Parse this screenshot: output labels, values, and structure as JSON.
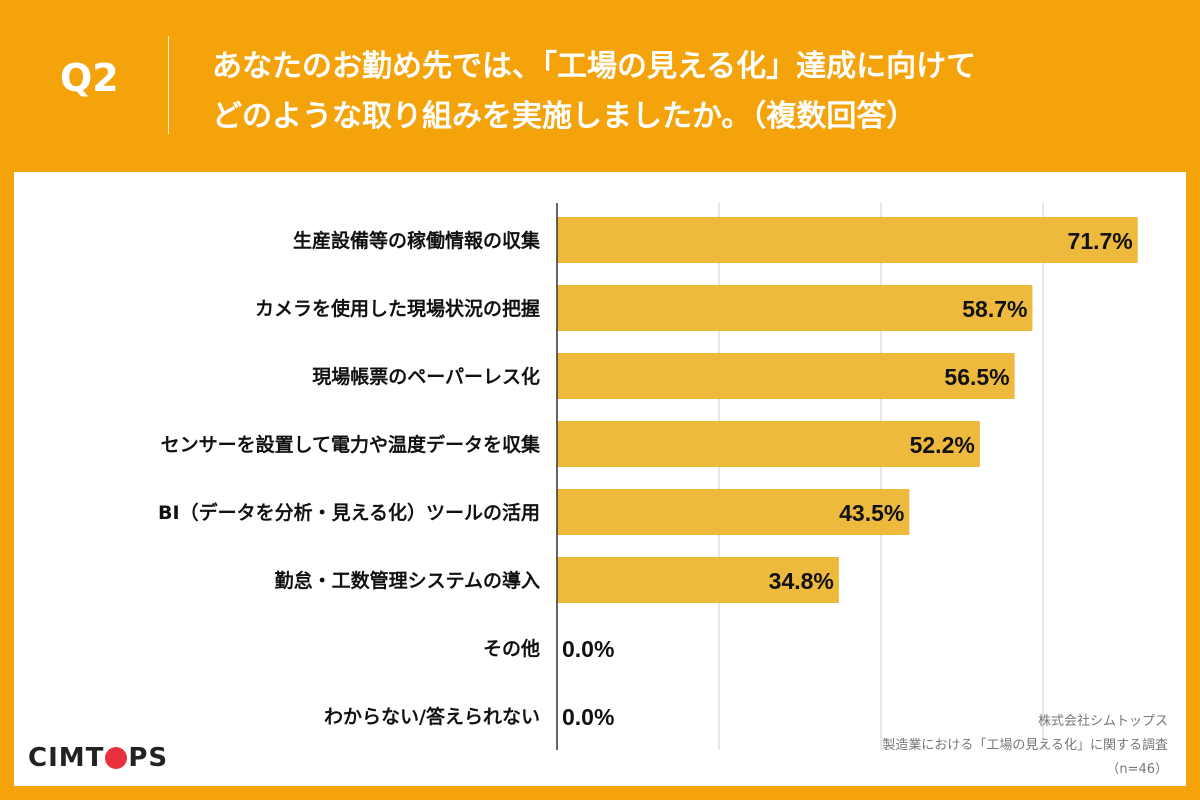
{
  "header": {
    "q_label": "Q2",
    "question_line1": "あなたのお勤め先では、「工場の見える化」達成に向けて",
    "question_line2": "どのような取り組みを実施しましたか。（複数回答）"
  },
  "logo": {
    "text_before": "CIMT",
    "text_after": "PS"
  },
  "source": {
    "company": "株式会社シムトップス",
    "survey": "製造業における「工場の見える化」に関する調査",
    "n": "（n=46）"
  },
  "colors": {
    "background": "#F5A30B",
    "bar": "#EDBA3E",
    "text": "#111111",
    "grid": "#cccccc"
  },
  "chart_data": {
    "type": "bar",
    "orientation": "horizontal",
    "categories": [
      "生産設備等の稼働情報の収集",
      "カメラを使用した現場状況の把握",
      "現場帳票のペーパーレス化",
      "センサーを設置して電力や温度データを収集",
      "BI（データを分析・見える化）ツールの活用",
      "勤怠・工数管理システムの導入",
      "その他",
      "わからない/答えられない"
    ],
    "values": [
      71.7,
      58.7,
      56.5,
      52.2,
      43.5,
      34.8,
      0.0,
      0.0
    ],
    "value_labels": [
      "71.7%",
      "58.7%",
      "56.5%",
      "52.2%",
      "43.5%",
      "34.8%",
      "0.0%",
      "0.0%"
    ],
    "xlim": [
      0,
      80
    ],
    "gridlines": [
      20,
      40,
      60,
      80
    ],
    "grid": true,
    "title": "",
    "xlabel": "",
    "ylabel": ""
  }
}
